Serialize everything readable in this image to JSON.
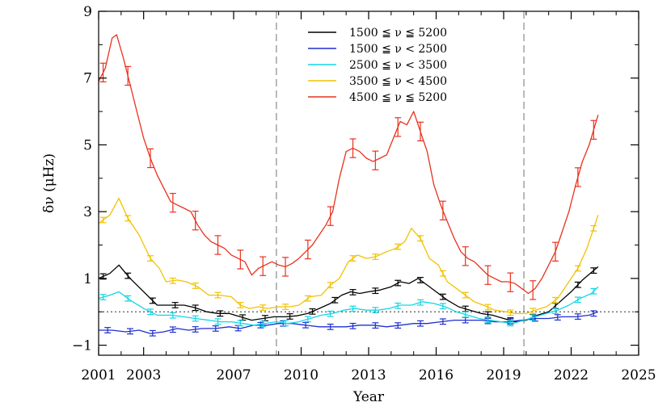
{
  "chart_data": {
    "type": "line",
    "xlabel": "Year",
    "ylabel": "δν (μHz)",
    "xlim": [
      2001,
      2025
    ],
    "ylim": [
      -1.3,
      9
    ],
    "x_ticks": [
      2001,
      2003,
      2007,
      2010,
      2013,
      2016,
      2019,
      2022,
      2025
    ],
    "x_tick_labels": [
      "2001",
      "2003",
      "2007",
      "2010",
      "2013",
      "2016",
      "2019",
      "2022",
      "2025"
    ],
    "y_ticks": [
      -1,
      1,
      3,
      5,
      7,
      9
    ],
    "y_tick_labels": [
      "−1",
      "1",
      "3",
      "5",
      "7",
      "9"
    ],
    "reference_lines": {
      "vertical_dashed_x": [
        2008.9,
        2019.9
      ],
      "horizontal_dotted_y": 0
    },
    "legend_position": "top-center",
    "grid": false,
    "series": [
      {
        "name": "1500 ≦ ν ≦ 5200",
        "color": "#000000",
        "points": [
          [
            2001.0,
            1.0
          ],
          [
            2001.5,
            1.15
          ],
          [
            2001.9,
            1.4
          ],
          [
            2002.4,
            1.0
          ],
          [
            2003.0,
            0.6
          ],
          [
            2003.6,
            0.2
          ],
          [
            2004.2,
            0.2
          ],
          [
            2004.8,
            0.2
          ],
          [
            2005.3,
            0.12
          ],
          [
            2005.8,
            0.0
          ],
          [
            2006.3,
            -0.05
          ],
          [
            2006.8,
            -0.05
          ],
          [
            2007.3,
            -0.15
          ],
          [
            2007.8,
            -0.25
          ],
          [
            2008.3,
            -0.2
          ],
          [
            2008.8,
            -0.15
          ],
          [
            2009.3,
            -0.15
          ],
          [
            2009.8,
            -0.12
          ],
          [
            2010.3,
            -0.05
          ],
          [
            2010.8,
            0.1
          ],
          [
            2011.3,
            0.25
          ],
          [
            2011.8,
            0.5
          ],
          [
            2012.2,
            0.6
          ],
          [
            2012.6,
            0.55
          ],
          [
            2013.0,
            0.6
          ],
          [
            2013.5,
            0.65
          ],
          [
            2014.0,
            0.75
          ],
          [
            2014.4,
            0.9
          ],
          [
            2014.8,
            0.85
          ],
          [
            2015.2,
            1.0
          ],
          [
            2015.6,
            0.8
          ],
          [
            2016.0,
            0.6
          ],
          [
            2016.5,
            0.35
          ],
          [
            2017.0,
            0.15
          ],
          [
            2017.5,
            0.05
          ],
          [
            2018.0,
            -0.05
          ],
          [
            2018.5,
            -0.1
          ],
          [
            2019.0,
            -0.2
          ],
          [
            2019.5,
            -0.3
          ],
          [
            2020.0,
            -0.25
          ],
          [
            2020.5,
            -0.1
          ],
          [
            2021.0,
            0.0
          ],
          [
            2021.5,
            0.3
          ],
          [
            2022.0,
            0.6
          ],
          [
            2022.5,
            0.95
          ],
          [
            2023.2,
            1.35
          ]
        ],
        "error_bars_x": [
          2001.2,
          2002.3,
          2003.4,
          2004.4,
          2005.3,
          2006.4,
          2007.4,
          2008.4,
          2009.5,
          2010.5,
          2011.5,
          2012.3,
          2013.3,
          2014.3,
          2015.3,
          2016.3,
          2017.3,
          2018.3,
          2019.3,
          2020.3,
          2021.3,
          2022.3,
          2023.0
        ]
      },
      {
        "name": "1500 ≦ ν < 2500",
        "color": "#1f2fd0",
        "points": [
          [
            2001.0,
            -0.55
          ],
          [
            2001.6,
            -0.55
          ],
          [
            2002.2,
            -0.6
          ],
          [
            2002.8,
            -0.55
          ],
          [
            2003.3,
            -0.65
          ],
          [
            2003.9,
            -0.6
          ],
          [
            2004.5,
            -0.5
          ],
          [
            2005.0,
            -0.55
          ],
          [
            2005.6,
            -0.5
          ],
          [
            2006.2,
            -0.5
          ],
          [
            2006.8,
            -0.45
          ],
          [
            2007.3,
            -0.5
          ],
          [
            2007.9,
            -0.4
          ],
          [
            2008.5,
            -0.4
          ],
          [
            2009.0,
            -0.35
          ],
          [
            2009.6,
            -0.35
          ],
          [
            2010.2,
            -0.4
          ],
          [
            2010.8,
            -0.45
          ],
          [
            2011.4,
            -0.45
          ],
          [
            2012.0,
            -0.45
          ],
          [
            2012.6,
            -0.4
          ],
          [
            2013.2,
            -0.4
          ],
          [
            2013.8,
            -0.45
          ],
          [
            2014.4,
            -0.4
          ],
          [
            2015.0,
            -0.35
          ],
          [
            2015.6,
            -0.35
          ],
          [
            2016.2,
            -0.3
          ],
          [
            2016.8,
            -0.25
          ],
          [
            2017.4,
            -0.25
          ],
          [
            2018.0,
            -0.25
          ],
          [
            2018.6,
            -0.3
          ],
          [
            2019.2,
            -0.3
          ],
          [
            2019.8,
            -0.25
          ],
          [
            2020.4,
            -0.2
          ],
          [
            2021.0,
            -0.2
          ],
          [
            2021.6,
            -0.15
          ],
          [
            2022.2,
            -0.15
          ],
          [
            2022.8,
            -0.1
          ],
          [
            2023.2,
            0.0
          ]
        ],
        "error_bars_x": [
          2001.4,
          2002.4,
          2003.4,
          2004.3,
          2005.3,
          2006.2,
          2007.2,
          2008.2,
          2009.2,
          2010.2,
          2011.3,
          2012.3,
          2013.3,
          2014.3,
          2015.3,
          2016.3,
          2017.3,
          2018.3,
          2019.3,
          2020.4,
          2021.4,
          2022.3,
          2023.0
        ]
      },
      {
        "name": "2500 ≦ ν < 3500",
        "color": "#12d6e6",
        "points": [
          [
            2001.0,
            0.4
          ],
          [
            2001.5,
            0.5
          ],
          [
            2001.9,
            0.6
          ],
          [
            2002.4,
            0.35
          ],
          [
            2003.0,
            0.1
          ],
          [
            2003.6,
            -0.1
          ],
          [
            2004.2,
            -0.1
          ],
          [
            2004.8,
            -0.15
          ],
          [
            2005.3,
            -0.2
          ],
          [
            2005.9,
            -0.25
          ],
          [
            2006.4,
            -0.3
          ],
          [
            2006.9,
            -0.3
          ],
          [
            2007.4,
            -0.35
          ],
          [
            2007.9,
            -0.4
          ],
          [
            2008.4,
            -0.35
          ],
          [
            2008.9,
            -0.3
          ],
          [
            2009.4,
            -0.35
          ],
          [
            2009.9,
            -0.3
          ],
          [
            2010.4,
            -0.2
          ],
          [
            2010.9,
            -0.1
          ],
          [
            2011.4,
            -0.05
          ],
          [
            2011.9,
            0.05
          ],
          [
            2012.4,
            0.1
          ],
          [
            2012.9,
            0.05
          ],
          [
            2013.4,
            0.05
          ],
          [
            2013.9,
            0.1
          ],
          [
            2014.4,
            0.2
          ],
          [
            2014.9,
            0.2
          ],
          [
            2015.4,
            0.3
          ],
          [
            2015.9,
            0.25
          ],
          [
            2016.4,
            0.15
          ],
          [
            2016.9,
            0.0
          ],
          [
            2017.4,
            -0.1
          ],
          [
            2017.9,
            -0.2
          ],
          [
            2018.4,
            -0.25
          ],
          [
            2018.9,
            -0.3
          ],
          [
            2019.4,
            -0.35
          ],
          [
            2019.9,
            -0.25
          ],
          [
            2020.4,
            -0.15
          ],
          [
            2020.9,
            -0.05
          ],
          [
            2021.4,
            0.05
          ],
          [
            2021.9,
            0.2
          ],
          [
            2022.4,
            0.4
          ],
          [
            2022.9,
            0.55
          ],
          [
            2023.2,
            0.75
          ]
        ],
        "error_bars_x": [
          2001.2,
          2002.3,
          2003.3,
          2004.3,
          2005.3,
          2006.3,
          2007.3,
          2008.3,
          2009.3,
          2010.3,
          2011.3,
          2012.3,
          2013.3,
          2014.3,
          2015.3,
          2016.3,
          2017.3,
          2018.3,
          2019.3,
          2020.3,
          2021.3,
          2022.3,
          2023.0
        ]
      },
      {
        "name": "3500 ≦ ν < 4500",
        "color": "#f2c200",
        "points": [
          [
            2001.0,
            2.65
          ],
          [
            2001.5,
            2.9
          ],
          [
            2001.9,
            3.4
          ],
          [
            2002.3,
            2.8
          ],
          [
            2002.8,
            2.3
          ],
          [
            2003.3,
            1.6
          ],
          [
            2003.7,
            1.3
          ],
          [
            2004.0,
            0.9
          ],
          [
            2004.5,
            0.95
          ],
          [
            2004.9,
            0.9
          ],
          [
            2005.4,
            0.75
          ],
          [
            2005.9,
            0.5
          ],
          [
            2006.4,
            0.5
          ],
          [
            2006.9,
            0.45
          ],
          [
            2007.3,
            0.2
          ],
          [
            2007.7,
            0.1
          ],
          [
            2008.1,
            0.15
          ],
          [
            2008.5,
            0.1
          ],
          [
            2009.0,
            0.15
          ],
          [
            2009.5,
            0.15
          ],
          [
            2009.9,
            0.2
          ],
          [
            2010.4,
            0.45
          ],
          [
            2010.9,
            0.5
          ],
          [
            2011.3,
            0.8
          ],
          [
            2011.7,
            1.0
          ],
          [
            2012.1,
            1.5
          ],
          [
            2012.5,
            1.7
          ],
          [
            2012.9,
            1.6
          ],
          [
            2013.3,
            1.65
          ],
          [
            2013.8,
            1.8
          ],
          [
            2014.2,
            1.9
          ],
          [
            2014.6,
            2.1
          ],
          [
            2014.9,
            2.5
          ],
          [
            2015.3,
            2.2
          ],
          [
            2015.7,
            1.6
          ],
          [
            2016.1,
            1.4
          ],
          [
            2016.5,
            0.9
          ],
          [
            2016.9,
            0.7
          ],
          [
            2017.3,
            0.5
          ],
          [
            2017.7,
            0.3
          ],
          [
            2018.1,
            0.2
          ],
          [
            2018.6,
            0.05
          ],
          [
            2019.1,
            0.0
          ],
          [
            2019.5,
            -0.05
          ],
          [
            2020.0,
            -0.05
          ],
          [
            2020.4,
            0.05
          ],
          [
            2020.9,
            0.15
          ],
          [
            2021.4,
            0.4
          ],
          [
            2021.8,
            0.8
          ],
          [
            2022.3,
            1.3
          ],
          [
            2022.7,
            1.9
          ],
          [
            2023.2,
            2.9
          ]
        ],
        "error_bars_x": [
          2001.2,
          2002.3,
          2003.3,
          2004.3,
          2005.3,
          2006.3,
          2007.3,
          2008.3,
          2009.3,
          2010.3,
          2011.3,
          2012.3,
          2013.3,
          2014.3,
          2015.3,
          2016.3,
          2017.3,
          2018.3,
          2019.3,
          2020.3,
          2021.3,
          2022.3,
          2023.0
        ]
      },
      {
        "name": "4500 ≦ ν ≦ 5200",
        "color": "#e8321e",
        "points": [
          [
            2001.0,
            6.9
          ],
          [
            2001.3,
            7.3
          ],
          [
            2001.6,
            8.2
          ],
          [
            2001.8,
            8.3
          ],
          [
            2002.1,
            7.6
          ],
          [
            2002.4,
            6.8
          ],
          [
            2002.7,
            6.0
          ],
          [
            2003.0,
            5.2
          ],
          [
            2003.3,
            4.6
          ],
          [
            2003.6,
            4.1
          ],
          [
            2003.9,
            3.7
          ],
          [
            2004.2,
            3.3
          ],
          [
            2004.5,
            3.2
          ],
          [
            2004.8,
            3.1
          ],
          [
            2005.1,
            3.0
          ],
          [
            2005.4,
            2.6
          ],
          [
            2005.7,
            2.3
          ],
          [
            2006.0,
            2.1
          ],
          [
            2006.3,
            2.0
          ],
          [
            2006.6,
            1.9
          ],
          [
            2006.9,
            1.7
          ],
          [
            2007.2,
            1.6
          ],
          [
            2007.5,
            1.5
          ],
          [
            2007.8,
            1.1
          ],
          [
            2008.1,
            1.3
          ],
          [
            2008.4,
            1.4
          ],
          [
            2008.7,
            1.5
          ],
          [
            2009.0,
            1.4
          ],
          [
            2009.3,
            1.35
          ],
          [
            2009.6,
            1.45
          ],
          [
            2009.9,
            1.6
          ],
          [
            2010.2,
            1.8
          ],
          [
            2010.5,
            2.0
          ],
          [
            2010.8,
            2.3
          ],
          [
            2011.1,
            2.6
          ],
          [
            2011.4,
            3.0
          ],
          [
            2011.7,
            4.0
          ],
          [
            2012.0,
            4.8
          ],
          [
            2012.3,
            4.9
          ],
          [
            2012.6,
            4.8
          ],
          [
            2012.9,
            4.6
          ],
          [
            2013.2,
            4.5
          ],
          [
            2013.5,
            4.6
          ],
          [
            2013.8,
            4.7
          ],
          [
            2014.1,
            5.2
          ],
          [
            2014.4,
            5.7
          ],
          [
            2014.7,
            5.6
          ],
          [
            2015.0,
            6.0
          ],
          [
            2015.3,
            5.4
          ],
          [
            2015.6,
            4.8
          ],
          [
            2015.9,
            3.8
          ],
          [
            2016.2,
            3.2
          ],
          [
            2016.5,
            2.7
          ],
          [
            2016.8,
            2.2
          ],
          [
            2017.1,
            1.8
          ],
          [
            2017.4,
            1.6
          ],
          [
            2017.7,
            1.5
          ],
          [
            2018.0,
            1.3
          ],
          [
            2018.3,
            1.1
          ],
          [
            2018.6,
            1.0
          ],
          [
            2018.9,
            0.9
          ],
          [
            2019.2,
            0.9
          ],
          [
            2019.5,
            0.85
          ],
          [
            2019.8,
            0.7
          ],
          [
            2020.1,
            0.55
          ],
          [
            2020.4,
            0.7
          ],
          [
            2020.7,
            1.0
          ],
          [
            2021.0,
            1.4
          ],
          [
            2021.3,
            1.8
          ],
          [
            2021.6,
            2.4
          ],
          [
            2021.9,
            3.0
          ],
          [
            2022.2,
            3.8
          ],
          [
            2022.5,
            4.5
          ],
          [
            2022.8,
            5.0
          ],
          [
            2023.2,
            5.9
          ]
        ],
        "error_bars_x": [
          2001.2,
          2002.3,
          2003.3,
          2004.3,
          2005.3,
          2006.3,
          2007.3,
          2008.3,
          2009.3,
          2010.3,
          2011.3,
          2012.3,
          2013.3,
          2014.3,
          2015.3,
          2016.3,
          2017.3,
          2018.3,
          2019.3,
          2020.3,
          2021.3,
          2022.3,
          2023.0
        ]
      }
    ]
  }
}
